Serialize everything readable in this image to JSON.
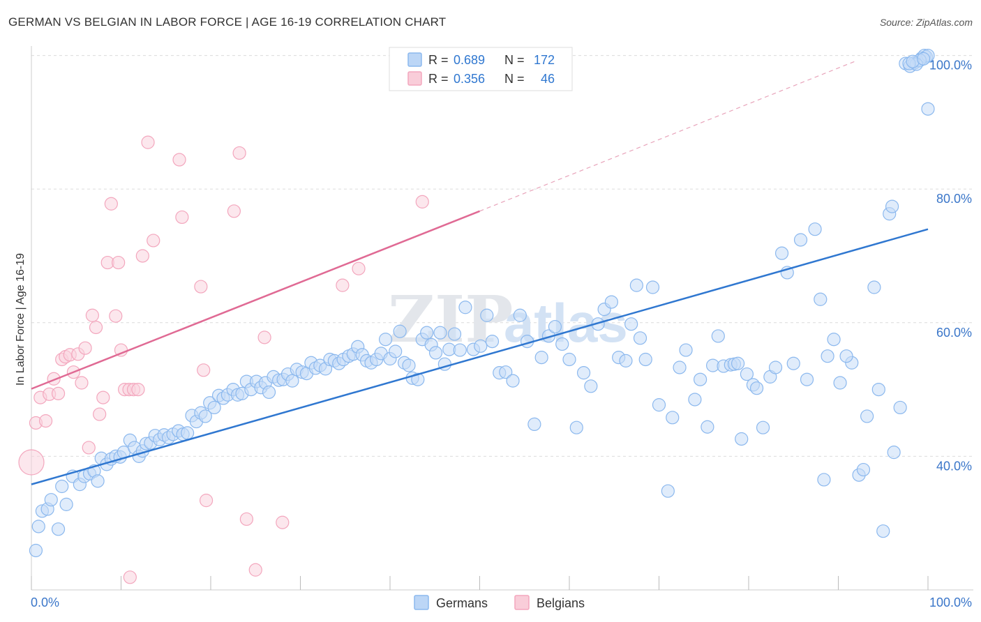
{
  "chart_data": {
    "type": "scatter",
    "title": "GERMAN VS BELGIAN IN LABOR FORCE | AGE 16-19 CORRELATION CHART",
    "source": "Source: ZipAtlas.com",
    "xlabel": "",
    "ylabel": "In Labor Force | Age 16-19",
    "xlim": [
      0,
      100
    ],
    "ylim": [
      20,
      101
    ],
    "x_tick_labels": [
      "0.0%",
      "100.0%"
    ],
    "y_ticks": [
      40,
      60,
      80,
      100
    ],
    "y_tick_labels": [
      "40.0%",
      "60.0%",
      "80.0%",
      "100.0%"
    ],
    "grid": true,
    "legend_position": "top-center",
    "watermark": "ZIPatlas",
    "legend": [
      {
        "name": "Germans",
        "r_label": "R =",
        "r_value": "0.689",
        "n_label": "N =",
        "n_value": "172",
        "color": "#8bb8ee"
      },
      {
        "name": "Belgians",
        "r_label": "R =",
        "r_value": "0.356",
        "n_label": "N =",
        "n_value": "46",
        "color": "#f3a6bd"
      }
    ],
    "series": [
      {
        "name": "Germans",
        "color": "#8bb8ee",
        "trend": {
          "x": [
            0,
            100
          ],
          "y": [
            35.8,
            74.0
          ],
          "color": "#2f77d0"
        },
        "points": [
          [
            0.5,
            25.9
          ],
          [
            0.8,
            29.5
          ],
          [
            1.2,
            31.8
          ],
          [
            1.8,
            32.1
          ],
          [
            2.2,
            33.5
          ],
          [
            3.0,
            29.1
          ],
          [
            3.4,
            35.5
          ],
          [
            3.9,
            32.8
          ],
          [
            4.6,
            37.0
          ],
          [
            5.4,
            35.8
          ],
          [
            5.9,
            37.0
          ],
          [
            6.5,
            37.4
          ],
          [
            7.0,
            37.8
          ],
          [
            7.4,
            36.3
          ],
          [
            7.8,
            39.7
          ],
          [
            8.4,
            38.8
          ],
          [
            8.9,
            39.6
          ],
          [
            9.4,
            40.0
          ],
          [
            9.9,
            39.9
          ],
          [
            10.3,
            40.6
          ],
          [
            11.0,
            42.4
          ],
          [
            11.5,
            41.3
          ],
          [
            12.0,
            40.0
          ],
          [
            12.4,
            40.8
          ],
          [
            12.8,
            41.9
          ],
          [
            13.3,
            42.0
          ],
          [
            13.8,
            43.1
          ],
          [
            14.3,
            42.5
          ],
          [
            14.8,
            43.2
          ],
          [
            15.3,
            42.8
          ],
          [
            15.8,
            43.3
          ],
          [
            16.4,
            43.8
          ],
          [
            16.9,
            43.3
          ],
          [
            17.4,
            43.5
          ],
          [
            17.9,
            46.1
          ],
          [
            18.4,
            45.2
          ],
          [
            18.9,
            46.5
          ],
          [
            19.4,
            46.0
          ],
          [
            19.9,
            48.0
          ],
          [
            20.4,
            47.3
          ],
          [
            20.9,
            49.1
          ],
          [
            21.4,
            48.7
          ],
          [
            21.9,
            49.2
          ],
          [
            22.5,
            50.0
          ],
          [
            23.0,
            49.2
          ],
          [
            23.5,
            49.4
          ],
          [
            24.0,
            51.2
          ],
          [
            24.5,
            50.0
          ],
          [
            25.1,
            51.2
          ],
          [
            25.6,
            50.3
          ],
          [
            26.1,
            51.0
          ],
          [
            26.5,
            49.6
          ],
          [
            27.0,
            51.9
          ],
          [
            27.6,
            51.4
          ],
          [
            28.1,
            51.5
          ],
          [
            28.6,
            52.3
          ],
          [
            29.1,
            51.3
          ],
          [
            29.6,
            53.0
          ],
          [
            30.2,
            52.6
          ],
          [
            30.7,
            52.4
          ],
          [
            31.2,
            54.0
          ],
          [
            31.7,
            53.2
          ],
          [
            32.2,
            53.6
          ],
          [
            32.8,
            53.1
          ],
          [
            33.3,
            54.5
          ],
          [
            33.8,
            54.3
          ],
          [
            34.3,
            53.9
          ],
          [
            34.8,
            54.5
          ],
          [
            35.4,
            55.0
          ],
          [
            35.9,
            55.3
          ],
          [
            36.4,
            56.4
          ],
          [
            36.9,
            55.2
          ],
          [
            37.4,
            54.3
          ],
          [
            37.9,
            54.0
          ],
          [
            38.5,
            54.5
          ],
          [
            39.0,
            55.4
          ],
          [
            39.5,
            57.5
          ],
          [
            40.0,
            54.6
          ],
          [
            40.6,
            55.7
          ],
          [
            41.1,
            58.7
          ],
          [
            41.6,
            54.0
          ],
          [
            42.1,
            53.6
          ],
          [
            42.5,
            51.7
          ],
          [
            43.1,
            51.5
          ],
          [
            43.6,
            57.5
          ],
          [
            44.1,
            58.5
          ],
          [
            44.6,
            56.7
          ],
          [
            45.1,
            55.5
          ],
          [
            45.6,
            58.5
          ],
          [
            46.1,
            53.8
          ],
          [
            46.6,
            56.0
          ],
          [
            47.2,
            58.3
          ],
          [
            47.8,
            55.9
          ],
          [
            48.4,
            62.3
          ],
          [
            49.3,
            56.0
          ],
          [
            50.1,
            56.5
          ],
          [
            50.8,
            61.1
          ],
          [
            51.4,
            57.2
          ],
          [
            52.2,
            52.5
          ],
          [
            52.9,
            52.6
          ],
          [
            53.7,
            51.3
          ],
          [
            54.5,
            61.1
          ],
          [
            55.3,
            57.2
          ],
          [
            56.1,
            44.8
          ],
          [
            56.9,
            54.8
          ],
          [
            57.7,
            58.0
          ],
          [
            58.4,
            59.4
          ],
          [
            59.2,
            56.8
          ],
          [
            60.0,
            54.5
          ],
          [
            60.8,
            44.3
          ],
          [
            61.6,
            52.5
          ],
          [
            62.4,
            50.5
          ],
          [
            63.2,
            59.8
          ],
          [
            63.9,
            62.0
          ],
          [
            64.7,
            63.1
          ],
          [
            65.5,
            54.8
          ],
          [
            66.3,
            54.3
          ],
          [
            66.9,
            59.8
          ],
          [
            67.5,
            65.6
          ],
          [
            67.9,
            57.7
          ],
          [
            68.5,
            54.5
          ],
          [
            69.3,
            65.3
          ],
          [
            70.0,
            47.7
          ],
          [
            71.0,
            34.8
          ],
          [
            71.5,
            45.8
          ],
          [
            72.3,
            53.3
          ],
          [
            73.0,
            55.9
          ],
          [
            74.0,
            48.5
          ],
          [
            74.6,
            51.5
          ],
          [
            75.4,
            44.4
          ],
          [
            76.0,
            53.6
          ],
          [
            76.6,
            58.0
          ],
          [
            77.2,
            53.5
          ],
          [
            78.0,
            53.7
          ],
          [
            78.4,
            53.8
          ],
          [
            78.8,
            53.9
          ],
          [
            79.2,
            42.6
          ],
          [
            79.8,
            52.3
          ],
          [
            80.5,
            50.7
          ],
          [
            80.9,
            50.2
          ],
          [
            81.6,
            44.3
          ],
          [
            82.4,
            51.9
          ],
          [
            83.0,
            53.3
          ],
          [
            83.7,
            70.4
          ],
          [
            84.3,
            67.5
          ],
          [
            85.0,
            53.9
          ],
          [
            85.8,
            72.4
          ],
          [
            86.5,
            51.5
          ],
          [
            87.4,
            74.0
          ],
          [
            88.0,
            63.5
          ],
          [
            88.8,
            55.0
          ],
          [
            89.5,
            57.5
          ],
          [
            90.2,
            51.0
          ],
          [
            91.5,
            54.0
          ],
          [
            92.3,
            37.2
          ],
          [
            92.8,
            38.0
          ],
          [
            93.2,
            46.0
          ],
          [
            94.0,
            65.3
          ],
          [
            94.5,
            50.0
          ],
          [
            95.0,
            28.8
          ],
          [
            95.7,
            76.3
          ],
          [
            96.2,
            40.6
          ],
          [
            96.9,
            47.3
          ],
          [
            97.5,
            98.8
          ],
          [
            98.0,
            98.4
          ],
          [
            98.5,
            98.9
          ],
          [
            99.0,
            99.2
          ],
          [
            99.3,
            99.6
          ],
          [
            99.6,
            100.0
          ],
          [
            99.8,
            99.8
          ],
          [
            100.0,
            100.0
          ],
          [
            100.0,
            92.0
          ],
          [
            99.1,
            99.3
          ],
          [
            98.7,
            98.7
          ],
          [
            97.9,
            98.8
          ],
          [
            98.3,
            99.1
          ],
          [
            99.5,
            99.5
          ],
          [
            96.0,
            77.4
          ],
          [
            90.9,
            55.0
          ],
          [
            88.4,
            36.5
          ]
        ]
      },
      {
        "name": "Belgians",
        "color": "#f3a6bd",
        "trend": {
          "x": [
            0,
            50
          ],
          "y": [
            50.1,
            76.7
          ],
          "color": "#e06a94"
        },
        "trend_extension": {
          "x": [
            50,
            92
          ],
          "y": [
            76.7,
            99.2
          ]
        },
        "points": [
          [
            0.0,
            39.1
          ],
          [
            0.5,
            45.0
          ],
          [
            1.0,
            48.8
          ],
          [
            1.6,
            45.3
          ],
          [
            2.0,
            49.3
          ],
          [
            2.5,
            51.6
          ],
          [
            3.0,
            49.4
          ],
          [
            3.4,
            54.5
          ],
          [
            3.8,
            54.9
          ],
          [
            4.3,
            55.2
          ],
          [
            4.7,
            52.6
          ],
          [
            5.2,
            55.3
          ],
          [
            5.6,
            51.0
          ],
          [
            6.0,
            56.2
          ],
          [
            6.4,
            41.3
          ],
          [
            6.8,
            61.1
          ],
          [
            7.2,
            59.3
          ],
          [
            7.6,
            46.3
          ],
          [
            8.0,
            48.8
          ],
          [
            8.5,
            69.0
          ],
          [
            8.9,
            77.8
          ],
          [
            9.4,
            61.0
          ],
          [
            9.7,
            69.0
          ],
          [
            10.0,
            55.9
          ],
          [
            10.4,
            50.0
          ],
          [
            10.9,
            50.0
          ],
          [
            11.4,
            50.0
          ],
          [
            11.9,
            50.0
          ],
          [
            12.4,
            70.0
          ],
          [
            13.0,
            87.0
          ],
          [
            13.6,
            72.3
          ],
          [
            16.5,
            84.4
          ],
          [
            16.8,
            75.8
          ],
          [
            18.9,
            65.4
          ],
          [
            19.2,
            52.9
          ],
          [
            19.5,
            33.4
          ],
          [
            22.6,
            76.7
          ],
          [
            23.2,
            85.4
          ],
          [
            24.0,
            30.6
          ],
          [
            25.0,
            23.0
          ],
          [
            26.0,
            57.8
          ],
          [
            28.0,
            30.1
          ],
          [
            34.7,
            65.6
          ],
          [
            36.5,
            68.1
          ],
          [
            43.6,
            78.1
          ],
          [
            11.0,
            21.9
          ]
        ]
      }
    ]
  },
  "bottom_legend": [
    {
      "label": "Germans",
      "color": "#8bb8ee"
    },
    {
      "label": "Belgians",
      "color": "#f3a6bd"
    }
  ]
}
